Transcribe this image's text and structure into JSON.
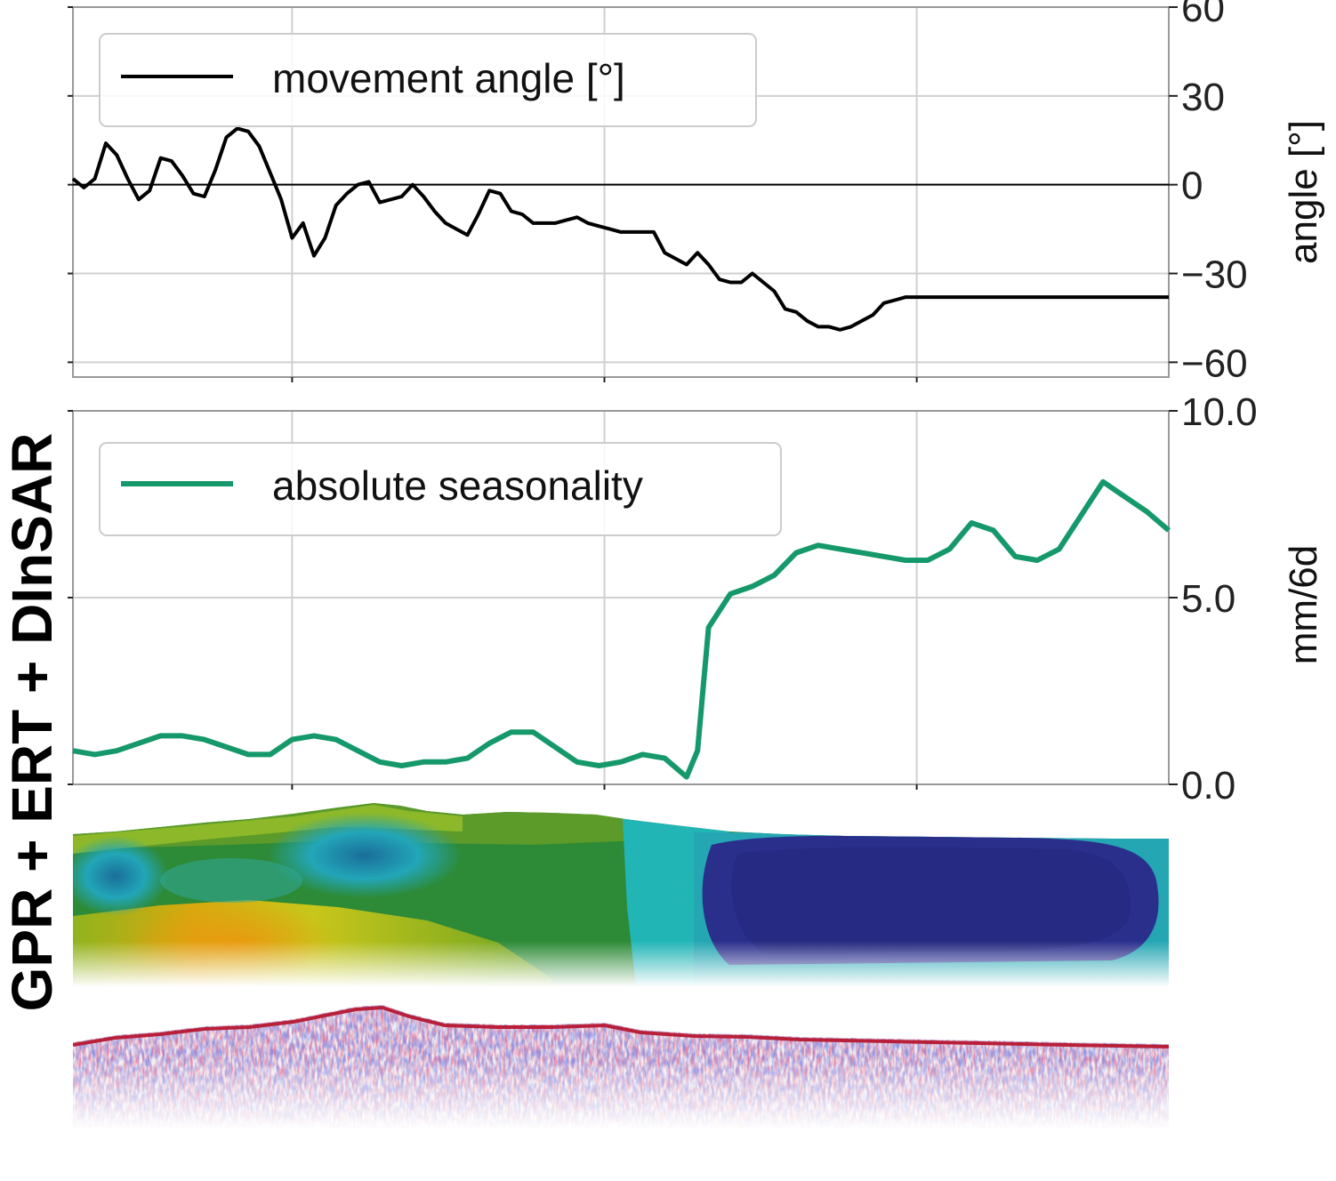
{
  "side_title": "GPR + ERT + DInSAR",
  "chart_data": [
    {
      "type": "line",
      "ylabel": "angle [°]",
      "ylim": [
        -65,
        60
      ],
      "yticks": [
        60,
        30,
        0,
        -30,
        -60
      ],
      "ytick_labels": [
        "60",
        "30",
        "0",
        "−30",
        "−60"
      ],
      "y_axis_side": "right",
      "grid": true,
      "zero_line": true,
      "legend_position": "top-left",
      "series": [
        {
          "name": "movement angle [°]",
          "color": "#000000",
          "x": [
            0,
            1,
            2,
            3,
            4,
            5,
            6,
            7,
            8,
            9,
            10,
            11,
            12,
            13,
            14,
            15,
            16,
            17,
            18,
            19,
            20,
            21,
            22,
            23,
            24,
            25,
            26,
            27,
            28,
            29,
            30,
            31,
            32,
            33,
            34,
            35,
            36,
            37,
            38,
            39,
            40,
            41,
            42,
            43,
            44,
            45,
            46,
            47,
            48,
            49,
            50,
            51,
            52,
            53,
            54,
            55,
            56,
            57,
            58,
            59,
            60,
            61,
            62,
            63,
            64,
            65,
            66,
            67,
            68,
            69,
            70,
            71,
            72,
            73,
            74,
            75,
            76,
            77,
            78,
            79,
            80,
            81,
            82,
            83,
            84,
            85,
            86,
            87,
            88,
            89,
            90,
            91,
            92,
            93,
            94,
            95,
            96,
            97,
            98,
            99,
            100
          ],
          "y": [
            2,
            -1,
            2,
            14,
            10,
            2,
            -5,
            -2,
            9,
            8,
            3,
            -3,
            -4,
            5,
            16,
            19,
            18,
            13,
            4,
            -5,
            -18,
            -13,
            -24,
            -18,
            -7,
            -3,
            0,
            1,
            -6,
            -5,
            -4,
            0,
            -4,
            -9,
            -13,
            -15,
            -17,
            -10,
            -2,
            -3,
            -9,
            -10,
            -13,
            -13,
            -13,
            -12,
            -11,
            -13,
            -14,
            -15,
            -16,
            -16,
            -16,
            -16,
            -23,
            -25,
            -27,
            -23,
            -27,
            -32,
            -33,
            -33,
            -30,
            -33,
            -36,
            -42,
            -43,
            -46,
            -48,
            -48,
            -49,
            -48,
            -46,
            -44,
            -40,
            -39,
            -38,
            -38,
            -38,
            -38,
            -38,
            -38,
            -38,
            -38,
            -38,
            -38,
            -38,
            -38,
            -38,
            -38,
            -38,
            -38,
            -38,
            -38,
            -38,
            -38,
            -38,
            -38,
            -38,
            -38,
            -38
          ]
        }
      ]
    },
    {
      "type": "line",
      "ylabel": "mm/6d",
      "ylim": [
        0,
        10
      ],
      "yticks": [
        0,
        5,
        10
      ],
      "ytick_labels": [
        "0.0",
        "5.0",
        "10.0"
      ],
      "y_axis_side": "right",
      "grid": true,
      "legend_position": "top-left",
      "series": [
        {
          "name": "absolute seasonality",
          "color": "#15986a",
          "x": [
            0,
            2,
            4,
            6,
            8,
            10,
            12,
            14,
            16,
            18,
            20,
            22,
            24,
            26,
            28,
            30,
            32,
            34,
            36,
            38,
            40,
            42,
            44,
            46,
            48,
            50,
            52,
            54,
            56,
            57,
            58,
            60,
            62,
            64,
            66,
            68,
            70,
            72,
            74,
            76,
            78,
            80,
            82,
            84,
            86,
            88,
            90,
            92,
            94,
            96,
            98,
            100
          ],
          "y": [
            0.9,
            0.8,
            0.9,
            1.1,
            1.3,
            1.3,
            1.2,
            1.0,
            0.8,
            0.8,
            1.2,
            1.3,
            1.2,
            0.9,
            0.6,
            0.5,
            0.6,
            0.6,
            0.7,
            1.1,
            1.4,
            1.4,
            1.0,
            0.6,
            0.5,
            0.6,
            0.8,
            0.7,
            0.2,
            0.9,
            4.2,
            5.1,
            5.3,
            5.6,
            6.2,
            6.4,
            6.3,
            6.2,
            6.1,
            6.0,
            6.0,
            6.3,
            7.0,
            6.8,
            6.1,
            6.0,
            6.3,
            7.2,
            8.1,
            7.7,
            7.3,
            6.8
          ]
        }
      ]
    }
  ]
}
